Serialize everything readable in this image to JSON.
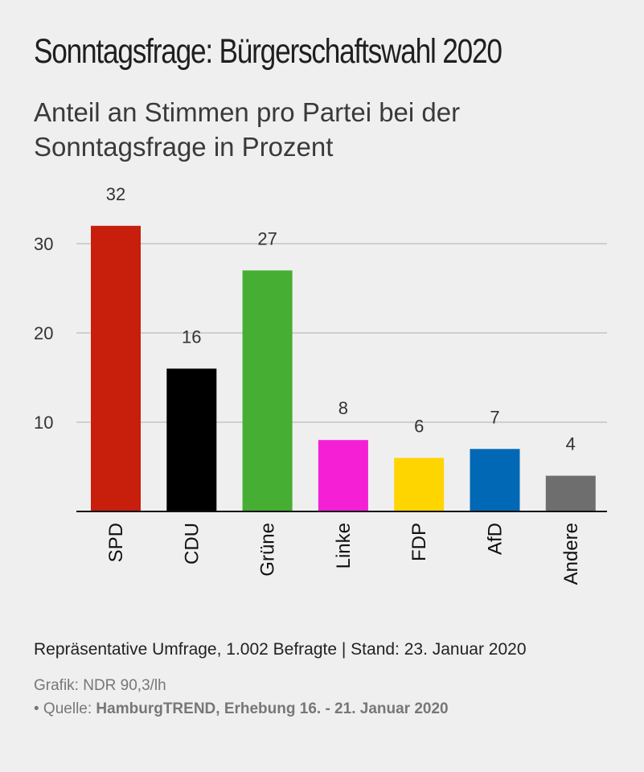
{
  "chart_data": {
    "type": "bar",
    "title": "Sonntagsfrage: Bürgerschaftswahl 2020",
    "subtitle": "Anteil an Stimmen pro Partei bei der Sonntagsfrage in Prozent",
    "categories": [
      "SPD",
      "CDU",
      "Grüne",
      "Linke",
      "FDP",
      "AfD",
      "Andere"
    ],
    "values": [
      32,
      16,
      27,
      8,
      6,
      7,
      4
    ],
    "value_labels": [
      "32",
      "16",
      "27",
      "8",
      "6",
      "7",
      "4"
    ],
    "colors": [
      "#c81e0c",
      "#000000",
      "#46ae32",
      "#f51fd6",
      "#ffd500",
      "#0068b4",
      "#6e6e6e"
    ],
    "yticks": [
      10,
      20,
      30
    ],
    "ylim": [
      0,
      30
    ],
    "grid": true,
    "xlabel": "",
    "ylabel": ""
  },
  "footer": {
    "note": "Repräsentative Umfrage, 1.002 Befragte | Stand: 23. Januar 2020",
    "grafik": "Grafik: NDR 90,3/lh",
    "source_prefix": "• Quelle: ",
    "source": "HamburgTREND, Erhebung 16. - 21. Januar 2020"
  }
}
